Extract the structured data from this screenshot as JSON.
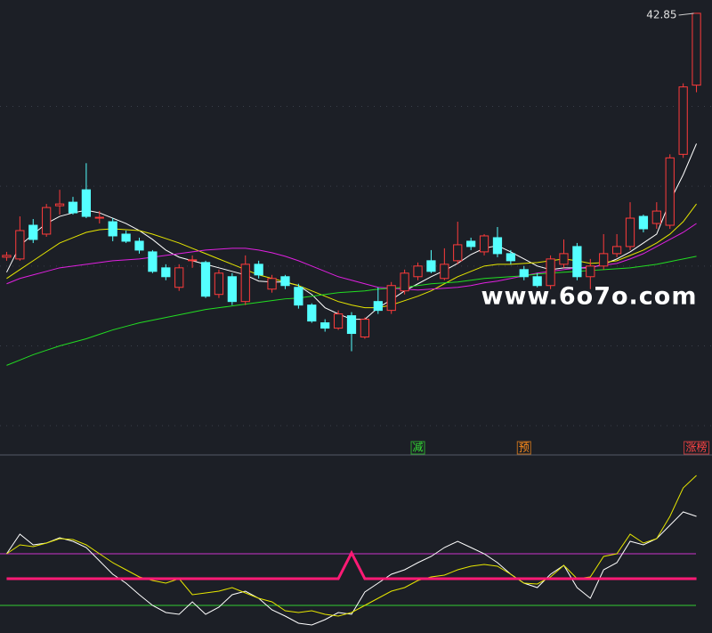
{
  "chart_data": [
    {
      "type": "candlestick",
      "open": [
        29.1,
        29.0,
        30.9,
        30.4,
        32.0,
        32.2,
        32.9,
        31.3,
        31.1,
        30.4,
        30.0,
        29.4,
        28.5,
        27.4,
        28.9,
        28.8,
        27.0,
        28.0,
        26.6,
        28.7,
        27.3,
        28.0,
        27.4,
        26.4,
        25.4,
        25.1,
        25.8,
        24.6,
        26.6,
        26.1,
        27.2,
        28.0,
        28.9,
        27.9,
        28.9,
        30.0,
        29.4,
        30.2,
        29.3,
        28.4,
        28.0,
        27.5,
        28.7,
        29.7,
        28.0,
        28.6,
        29.3,
        29.7,
        31.4,
        31.0,
        30.9,
        34.9,
        38.8
      ],
      "high": [
        29.4,
        31.4,
        31.25,
        32.1,
        32.9,
        32.5,
        34.4,
        31.7,
        31.3,
        30.6,
        30.2,
        29.5,
        28.7,
        28.7,
        29.2,
        28.9,
        28.4,
        28.2,
        29.2,
        28.9,
        28.1,
        28.1,
        27.6,
        26.5,
        25.6,
        26.1,
        26.0,
        25.7,
        27.4,
        27.7,
        28.4,
        28.8,
        29.5,
        29.6,
        31.1,
        30.2,
        30.4,
        30.8,
        29.5,
        28.6,
        28.2,
        29.2,
        30.1,
        29.9,
        29.0,
        30.4,
        30.4,
        32.2,
        31.5,
        32.2,
        34.9,
        38.9,
        42.85
      ],
      "low": [
        28.9,
        28.9,
        29.9,
        30.25,
        31.5,
        31.5,
        31.3,
        31.0,
        30.0,
        29.9,
        29.3,
        28.2,
        27.8,
        27.2,
        28.5,
        26.8,
        26.8,
        26.4,
        26.4,
        27.9,
        27.1,
        27.3,
        26.2,
        25.4,
        24.9,
        25.0,
        23.8,
        24.5,
        25.9,
        25.9,
        27.0,
        27.8,
        28.2,
        27.8,
        28.7,
        29.5,
        29.2,
        29.1,
        28.7,
        27.8,
        27.4,
        27.3,
        28.5,
        27.8,
        27.3,
        28.4,
        29.1,
        29.5,
        30.5,
        30.7,
        30.7,
        34.7,
        38.4
      ],
      "close": [
        29.2,
        30.6,
        30.1,
        31.9,
        32.1,
        31.6,
        31.4,
        31.35,
        30.3,
        30.0,
        29.5,
        28.3,
        28.0,
        28.5,
        28.95,
        26.9,
        28.2,
        26.6,
        28.7,
        28.1,
        27.9,
        27.5,
        26.4,
        25.5,
        25.1,
        25.9,
        24.8,
        25.6,
        26.1,
        27.5,
        28.2,
        28.6,
        28.3,
        28.7,
        29.8,
        29.7,
        30.3,
        29.3,
        28.9,
        28.0,
        27.5,
        29.0,
        29.3,
        28.0,
        28.6,
        29.3,
        29.7,
        31.3,
        30.7,
        31.7,
        34.7,
        38.7,
        42.85
      ],
      "up_color": "#ff3b3b",
      "down_color": "#54ffff",
      "series": [
        {
          "color": "#ffffff",
          "values": [
            28.25,
            29.75,
            30.4,
            31.0,
            31.4,
            31.6,
            31.75,
            31.6,
            31.3,
            31.0,
            30.6,
            30.1,
            29.5,
            29.1,
            28.9,
            28.7,
            28.5,
            28.3,
            28.1,
            27.75,
            27.7,
            27.7,
            27.5,
            27.0,
            26.25,
            25.9,
            25.6,
            25.6,
            26.25,
            26.7,
            27.2,
            27.6,
            28.0,
            28.35,
            28.75,
            29.25,
            29.6,
            29.75,
            29.4,
            29.0,
            28.6,
            28.4,
            28.5,
            28.5,
            28.5,
            28.7,
            29.0,
            29.4,
            29.9,
            30.4,
            32.25,
            33.75,
            35.5
          ]
        },
        {
          "color": "#e6e600",
          "values": [
            27.9,
            28.4,
            28.9,
            29.4,
            29.9,
            30.2,
            30.5,
            30.65,
            30.7,
            30.65,
            30.6,
            30.4,
            30.15,
            29.9,
            29.6,
            29.3,
            29.0,
            28.7,
            28.4,
            28.1,
            27.9,
            27.7,
            27.5,
            27.2,
            26.9,
            26.6,
            26.4,
            26.25,
            26.25,
            26.4,
            26.65,
            26.9,
            27.2,
            27.6,
            28.0,
            28.3,
            28.6,
            28.7,
            28.7,
            28.75,
            28.8,
            28.9,
            29.0,
            28.9,
            28.75,
            28.8,
            28.9,
            29.2,
            29.5,
            29.9,
            30.4,
            31.1,
            32.1
          ]
        },
        {
          "color": "#e020e0",
          "values": [
            27.6,
            27.9,
            28.1,
            28.3,
            28.5,
            28.6,
            28.7,
            28.8,
            28.9,
            28.95,
            29.0,
            29.1,
            29.2,
            29.3,
            29.4,
            29.5,
            29.55,
            29.6,
            29.6,
            29.5,
            29.35,
            29.15,
            28.9,
            28.6,
            28.3,
            28.0,
            27.8,
            27.6,
            27.4,
            27.35,
            27.3,
            27.25,
            27.3,
            27.35,
            27.4,
            27.5,
            27.65,
            27.75,
            27.9,
            28.05,
            28.2,
            28.3,
            28.4,
            28.5,
            28.55,
            28.65,
            28.75,
            29.0,
            29.3,
            29.7,
            30.1,
            30.5,
            31.0
          ]
        },
        {
          "color": "#22dd22",
          "values": [
            23.0,
            23.3,
            23.6,
            23.85,
            24.1,
            24.3,
            24.5,
            24.75,
            25.0,
            25.2,
            25.4,
            25.55,
            25.7,
            25.85,
            26.0,
            26.15,
            26.25,
            26.35,
            26.45,
            26.55,
            26.65,
            26.75,
            26.8,
            26.9,
            27.0,
            27.1,
            27.15,
            27.2,
            27.3,
            27.35,
            27.4,
            27.5,
            27.6,
            27.65,
            27.7,
            27.8,
            27.9,
            27.95,
            28.0,
            28.05,
            28.15,
            28.2,
            28.25,
            28.3,
            28.35,
            28.4,
            28.45,
            28.5,
            28.6,
            28.7,
            28.85,
            29.0,
            29.15
          ]
        }
      ],
      "ylim": [
        18,
        43.5
      ],
      "yticks": [
        37.6,
        33.1,
        28.6,
        24.1,
        19.6
      ],
      "grid": true,
      "watermark": "www.6o7o.com",
      "signals": [
        {
          "text": "减",
          "at": 31,
          "color": "#33dd33"
        },
        {
          "text": "预",
          "at": 39,
          "color": "#ff8c1a"
        },
        {
          "text": "涨榜",
          "at": 52,
          "color": "#ff4444"
        }
      ]
    },
    {
      "type": "line",
      "series": [
        {
          "color": "#ffffff",
          "values": [
            44.5,
            55.5,
            49.5,
            50.5,
            53.5,
            51.5,
            48,
            40.5,
            33,
            28,
            21.5,
            15.5,
            11.5,
            10.5,
            17.5,
            10.5,
            14.5,
            21.5,
            23.5,
            19.5,
            13,
            9.5,
            5.5,
            4.5,
            7.5,
            11.5,
            10.5,
            23,
            28,
            33,
            35.5,
            39.5,
            43,
            48,
            51.5,
            48,
            44.5,
            39.5,
            33,
            28,
            25.5,
            33,
            38,
            25.5,
            19.5,
            35.5,
            39.5,
            51.5,
            49.5,
            53,
            60.5,
            68,
            65.5
          ]
        },
        {
          "color": "#e6e600",
          "values": [
            44.5,
            49.5,
            48.5,
            50.5,
            53,
            52.5,
            49.5,
            44.5,
            39.5,
            35.5,
            31.5,
            29.5,
            28,
            30.5,
            21.5,
            22.5,
            23.5,
            25.5,
            22.5,
            19.5,
            17.5,
            12.5,
            11.5,
            12.5,
            10.5,
            9.5,
            11.5,
            15.5,
            19.5,
            23.5,
            25.5,
            29.5,
            31.5,
            32.5,
            35.5,
            37.5,
            38.5,
            37.5,
            33,
            28,
            27.5,
            31.5,
            38,
            30.5,
            31.5,
            43,
            44.5,
            55.5,
            50.5,
            53,
            65.5,
            81.5,
            88.5
          ]
        },
        {
          "color": "#ff1a75",
          "width": 3,
          "values": [
            30.5,
            30.5,
            30.5,
            30.5,
            30.5,
            30.5,
            30.5,
            30.5,
            30.5,
            30.5,
            30.5,
            30.5,
            30.5,
            30.5,
            30.5,
            30.5,
            30.5,
            30.5,
            30.5,
            30.5,
            30.5,
            30.5,
            30.5,
            30.5,
            30.5,
            30.5,
            45,
            30.5,
            30.5,
            30.5,
            30.5,
            30.5,
            30.5,
            30.5,
            30.5,
            30.5,
            30.5,
            30.5,
            30.5,
            30.5,
            30.5,
            30.5,
            30.5,
            30.5,
            30.5,
            30.5,
            30.5,
            30.5,
            30.5,
            30.5,
            30.5,
            30.5,
            30.5
          ]
        }
      ],
      "reference_lines": [
        {
          "value": 44.5,
          "color": "#cc33cc"
        },
        {
          "value": 15.5,
          "color": "#33cc33"
        }
      ],
      "ylim": [
        0,
        99.5
      ]
    }
  ]
}
